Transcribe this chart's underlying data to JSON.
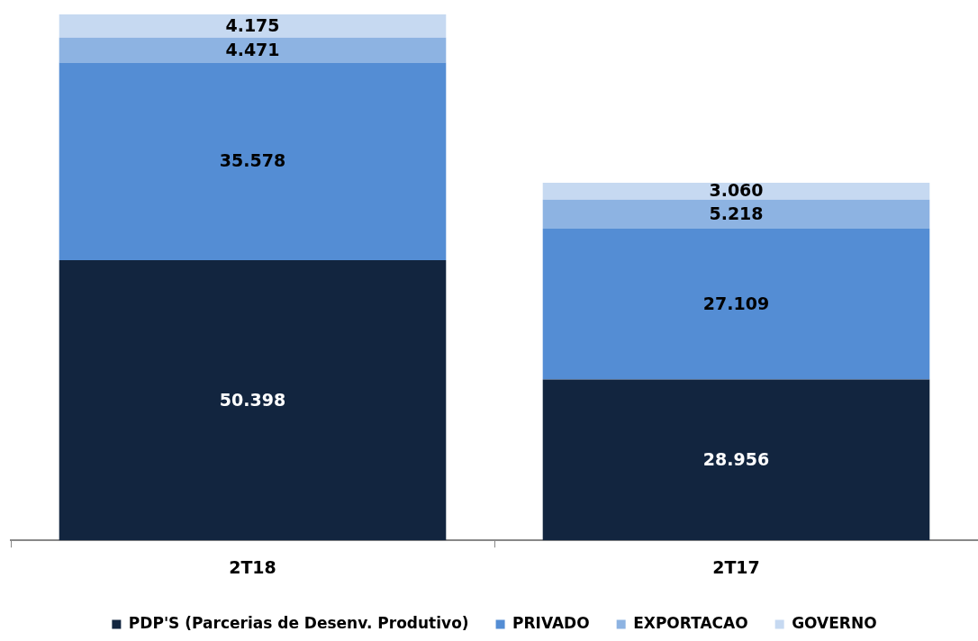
{
  "chart_data": {
    "type": "bar",
    "stacked": true,
    "categories": [
      "2T18",
      "2T17"
    ],
    "legend": "bottom",
    "grid": false,
    "series": [
      {
        "name": "PDP'S (Parcerias de Desenv. Produtivo)",
        "color": "#12253f",
        "values": [
          50398,
          28956
        ],
        "value_labels": [
          "50.398",
          "28.956"
        ]
      },
      {
        "name": "PRIVADO",
        "color": "#548dd4",
        "values": [
          35578,
          27109
        ],
        "value_labels": [
          "35.578",
          "27.109"
        ]
      },
      {
        "name": "EXPORTACAO",
        "color": "#8db3e2",
        "values": [
          4471,
          5218
        ],
        "value_labels": [
          "4.471",
          "5.218"
        ]
      },
      {
        "name": "GOVERNO",
        "color": "#c6d9f1",
        "values": [
          4175,
          3060
        ],
        "value_labels": [
          "4.175",
          "3.060"
        ]
      }
    ]
  }
}
